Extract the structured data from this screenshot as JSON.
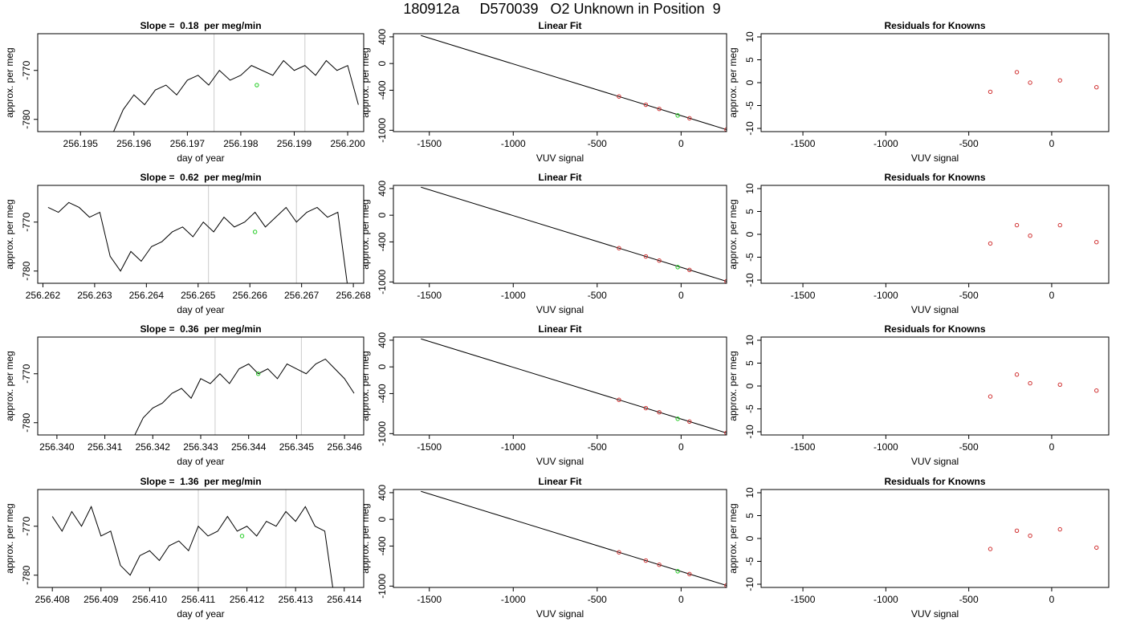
{
  "title": "180912a     D570039   O2 Unknown in Position  9",
  "chart_data": [
    {
      "type": "line",
      "title": "Slope =  0.18  per meg/min",
      "xlabel": "day of year",
      "ylabel": "approx. per meg",
      "xlim": [
        256.1942,
        256.2003
      ],
      "xticks": [
        256.195,
        256.196,
        256.197,
        256.198,
        256.199,
        {
          "value": 256.2,
          "label": "256.200"
        }
      ],
      "ylim": [
        -782.5,
        -762.5
      ],
      "yticks": [
        -770,
        -780
      ],
      "color": "#000000",
      "x": [
        256.1956,
        256.1958,
        256.196,
        256.1962,
        256.1964,
        256.1966,
        256.1968,
        256.197,
        256.1972,
        256.1974,
        256.1976,
        256.1978,
        256.198,
        256.1982,
        256.1984,
        256.1986,
        256.1988,
        256.199,
        256.1992,
        256.1994,
        256.1996,
        256.1998,
        256.2,
        256.2002
      ],
      "values": [
        -783,
        -778,
        -775,
        -777,
        -774,
        -773,
        -775,
        -772,
        -771,
        -773,
        -770,
        -772,
        -771,
        -769,
        -770,
        -771,
        -768,
        -770,
        -769,
        -771,
        -768,
        -770,
        -769,
        -777
      ],
      "vlines": [
        256.1975,
        256.1992
      ],
      "vline_color": "#cccccc",
      "marker": {
        "x": 256.1983,
        "y": -773,
        "color": "#22cc22"
      }
    },
    {
      "type": "scatter",
      "title": "Linear Fit",
      "xlabel": "VUV signal",
      "ylabel": "approx. per meg",
      "xlim": [
        -1714,
        271
      ],
      "xticks": [
        -1500,
        -1000,
        -500,
        0
      ],
      "ylim": [
        -1020,
        447
      ],
      "yticks": [
        400,
        0,
        -400,
        -1000
      ],
      "fit_line": {
        "x": [
          -1550,
          270
        ],
        "y": [
          420,
          -990
        ],
        "color": "#000000"
      },
      "x": [
        -370,
        -210,
        -130,
        50,
        270
      ],
      "values": [
        -494,
        -618,
        -680,
        -820,
        -990
      ],
      "color": "#d03030",
      "marker": {
        "x": -20,
        "y": -778,
        "color": "#22cc22"
      }
    },
    {
      "type": "scatter",
      "title": "Residuals for Knowns",
      "xlabel": "VUV signal",
      "ylabel": "approx. per meg",
      "xlim": [
        -1752,
        344
      ],
      "xticks": [
        -1500,
        -1000,
        -500,
        0
      ],
      "ylim": [
        -10.7,
        10.7
      ],
      "yticks": [
        10,
        5,
        0,
        -5,
        -10
      ],
      "x": [
        -370,
        -210,
        -130,
        50,
        270
      ],
      "values": [
        -2,
        2.3,
        0,
        0.5,
        -1
      ],
      "color": "#d03030"
    },
    {
      "type": "line",
      "title": "Slope =  0.62  per meg/min",
      "xlabel": "day of year",
      "ylabel": "approx. per meg",
      "xlim": [
        256.2619,
        256.2682
      ],
      "xticks": [
        256.262,
        256.263,
        256.264,
        256.265,
        256.266,
        256.267,
        256.268
      ],
      "ylim": [
        -782.5,
        -762.5
      ],
      "yticks": [
        -770,
        -780
      ],
      "color": "#000000",
      "x": [
        256.2621,
        256.2623,
        256.2625,
        256.2627,
        256.2629,
        256.2631,
        256.2633,
        256.2635,
        256.2637,
        256.2639,
        256.2641,
        256.2643,
        256.2645,
        256.2647,
        256.2649,
        256.2651,
        256.2653,
        256.2655,
        256.2657,
        256.2659,
        256.2661,
        256.2663,
        256.2665,
        256.2667,
        256.2669,
        256.2671,
        256.2673,
        256.2675,
        256.2677,
        256.2679
      ],
      "values": [
        -767,
        -768,
        -766,
        -767,
        -769,
        -768,
        -777,
        -780,
        -776,
        -778,
        -775,
        -774,
        -772,
        -771,
        -773,
        -770,
        -772,
        -769,
        -771,
        -770,
        -768,
        -771,
        -769,
        -767,
        -770,
        -768,
        -767,
        -769,
        -768,
        -784
      ],
      "vlines": [
        256.2652,
        256.2669
      ],
      "vline_color": "#cccccc",
      "marker": {
        "x": 256.2661,
        "y": -772,
        "color": "#22cc22"
      }
    },
    {
      "type": "scatter",
      "title": "Linear Fit",
      "xlabel": "VUV signal",
      "ylabel": "approx. per meg",
      "xlim": [
        -1714,
        271
      ],
      "xticks": [
        -1500,
        -1000,
        -500,
        0
      ],
      "ylim": [
        -1020,
        447
      ],
      "yticks": [
        400,
        0,
        -400,
        -1000
      ],
      "fit_line": {
        "x": [
          -1550,
          270
        ],
        "y": [
          420,
          -990
        ],
        "color": "#000000"
      },
      "x": [
        -370,
        -210,
        -130,
        50,
        270
      ],
      "values": [
        -494,
        -618,
        -680,
        -820,
        -990
      ],
      "color": "#d03030",
      "marker": {
        "x": -20,
        "y": -778,
        "color": "#22cc22"
      }
    },
    {
      "type": "scatter",
      "title": "Residuals for Knowns",
      "xlabel": "VUV signal",
      "ylabel": "approx. per meg",
      "xlim": [
        -1752,
        344
      ],
      "xticks": [
        -1500,
        -1000,
        -500,
        0
      ],
      "ylim": [
        -10.7,
        10.7
      ],
      "yticks": [
        10,
        5,
        0,
        -5,
        -10
      ],
      "x": [
        -370,
        -210,
        -130,
        50,
        270
      ],
      "values": [
        -2,
        2,
        -0.3,
        2,
        -1.7
      ],
      "color": "#d03030"
    },
    {
      "type": "line",
      "title": "Slope =  0.36  per meg/min",
      "xlabel": "day of year",
      "ylabel": "approx. per meg",
      "xlim": [
        256.3396,
        256.3464
      ],
      "xticks": [
        {
          "value": 256.34,
          "label": "256.340"
        },
        256.341,
        256.342,
        256.343,
        256.344,
        256.345,
        256.346
      ],
      "ylim": [
        -782.5,
        -762.5
      ],
      "yticks": [
        -770,
        -780
      ],
      "color": "#000000",
      "x": [
        256.3416,
        256.3418,
        256.342,
        256.3422,
        256.3424,
        256.3426,
        256.3428,
        256.343,
        256.3432,
        256.3434,
        256.3436,
        256.3438,
        256.344,
        256.3442,
        256.3444,
        256.3446,
        256.3448,
        256.345,
        256.3452,
        256.3454,
        256.3456,
        256.3458,
        256.346,
        256.3462
      ],
      "values": [
        -783,
        -779,
        -777,
        -776,
        -774,
        -773,
        -775,
        -771,
        -772,
        -770,
        -772,
        -769,
        -768,
        -770,
        -769,
        -771,
        -768,
        -769,
        -770,
        -768,
        -767,
        -769,
        -771,
        -774
      ],
      "vlines": [
        256.3433,
        256.3451
      ],
      "vline_color": "#cccccc",
      "marker": {
        "x": 256.3442,
        "y": -770,
        "color": "#22cc22"
      }
    },
    {
      "type": "scatter",
      "title": "Linear Fit",
      "xlabel": "VUV signal",
      "ylabel": "approx. per meg",
      "xlim": [
        -1714,
        271
      ],
      "xticks": [
        -1500,
        -1000,
        -500,
        0
      ],
      "ylim": [
        -1020,
        447
      ],
      "yticks": [
        400,
        0,
        -400,
        -1000
      ],
      "fit_line": {
        "x": [
          -1550,
          270
        ],
        "y": [
          420,
          -990
        ],
        "color": "#000000"
      },
      "x": [
        -370,
        -210,
        -130,
        50,
        270
      ],
      "values": [
        -494,
        -618,
        -680,
        -820,
        -990
      ],
      "color": "#d03030",
      "marker": {
        "x": -20,
        "y": -778,
        "color": "#22cc22"
      }
    },
    {
      "type": "scatter",
      "title": "Residuals for Knowns",
      "xlabel": "VUV signal",
      "ylabel": "approx. per meg",
      "xlim": [
        -1752,
        344
      ],
      "xticks": [
        -1500,
        -1000,
        -500,
        0
      ],
      "ylim": [
        -10.7,
        10.7
      ],
      "yticks": [
        10,
        5,
        0,
        -5,
        -10
      ],
      "x": [
        -370,
        -210,
        -130,
        50,
        270
      ],
      "values": [
        -2.3,
        2.5,
        0.6,
        0.3,
        -1
      ],
      "color": "#d03030"
    },
    {
      "type": "line",
      "title": "Slope =  1.36  per meg/min",
      "xlabel": "day of year",
      "ylabel": "approx. per meg",
      "xlim": [
        256.4077,
        256.4144
      ],
      "xticks": [
        256.408,
        256.409,
        {
          "value": 256.41,
          "label": "256.410"
        },
        256.411,
        256.412,
        256.413,
        256.414
      ],
      "ylim": [
        -782.5,
        -762.5
      ],
      "yticks": [
        -770,
        -780
      ],
      "color": "#000000",
      "x": [
        256.408,
        256.4082,
        256.4084,
        256.4086,
        256.4088,
        256.409,
        256.4092,
        256.4094,
        256.4096,
        256.4098,
        256.41,
        256.4102,
        256.4104,
        256.4106,
        256.4108,
        256.411,
        256.4112,
        256.4114,
        256.4116,
        256.4118,
        256.412,
        256.4122,
        256.4124,
        256.4126,
        256.4128,
        256.413,
        256.4132,
        256.4134,
        256.4136,
        256.4138
      ],
      "values": [
        -768,
        -771,
        -767,
        -770,
        -766,
        -772,
        -771,
        -778,
        -780,
        -776,
        -775,
        -777,
        -774,
        -773,
        -775,
        -770,
        -772,
        -771,
        -768,
        -771,
        -770,
        -772,
        -769,
        -770,
        -767,
        -769,
        -766,
        -770,
        -771,
        -785
      ],
      "vlines": [
        256.411,
        256.4128
      ],
      "vline_color": "#cccccc",
      "marker": {
        "x": 256.4119,
        "y": -772,
        "color": "#22cc22"
      }
    },
    {
      "type": "scatter",
      "title": "Linear Fit",
      "xlabel": "VUV signal",
      "ylabel": "approx. per meg",
      "xlim": [
        -1714,
        271
      ],
      "xticks": [
        -1500,
        -1000,
        -500,
        0
      ],
      "ylim": [
        -1020,
        447
      ],
      "yticks": [
        400,
        0,
        -400,
        -1000
      ],
      "fit_line": {
        "x": [
          -1550,
          270
        ],
        "y": [
          420,
          -990
        ],
        "color": "#000000"
      },
      "x": [
        -370,
        -210,
        -130,
        50,
        270
      ],
      "values": [
        -494,
        -618,
        -680,
        -820,
        -990
      ],
      "color": "#d03030",
      "marker": {
        "x": -20,
        "y": -778,
        "color": "#22cc22"
      }
    },
    {
      "type": "scatter",
      "title": "Residuals for Knowns",
      "xlabel": "VUV signal",
      "ylabel": "approx. per meg",
      "xlim": [
        -1752,
        344
      ],
      "xticks": [
        -1500,
        -1000,
        -500,
        0
      ],
      "ylim": [
        -10.7,
        10.7
      ],
      "yticks": [
        10,
        5,
        0,
        -5,
        -10
      ],
      "x": [
        -370,
        -210,
        -130,
        50,
        270
      ],
      "values": [
        -2.3,
        1.7,
        0.6,
        2,
        -2
      ],
      "color": "#d03030"
    }
  ]
}
